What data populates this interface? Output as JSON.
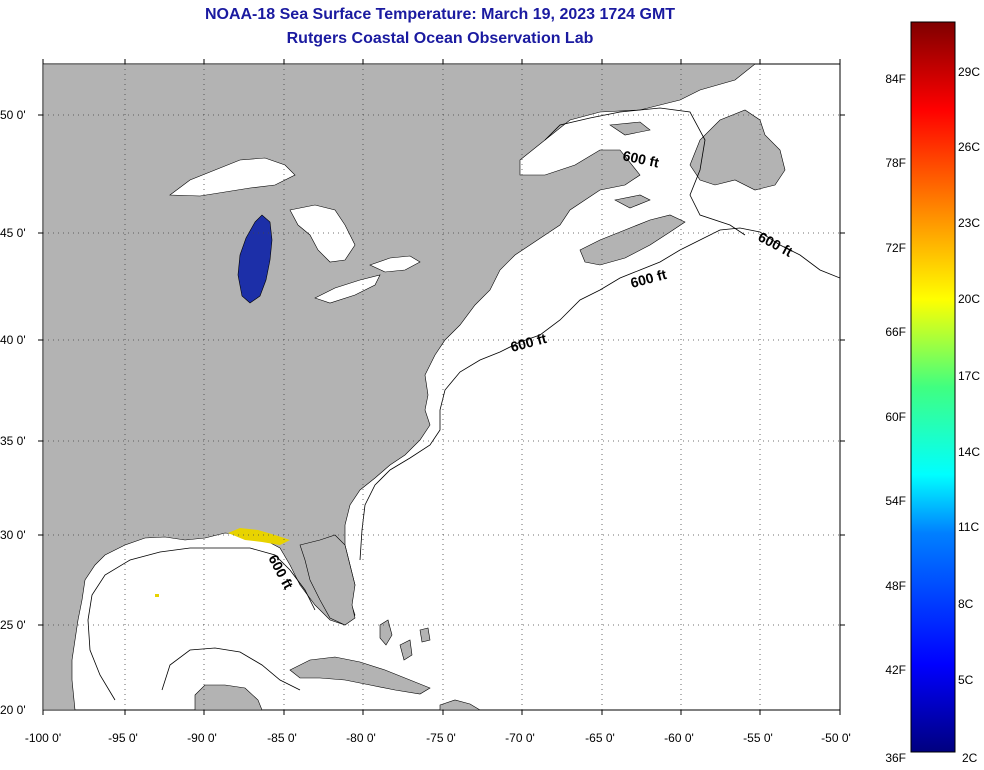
{
  "title": "NOAA-18 Sea Surface Temperature:  March 19, 2023 1724 GMT",
  "subtitle": "Rutgers Coastal Ocean Observation Lab",
  "map": {
    "lat_labels": [
      "50 0'",
      "45 0'",
      "40 0'",
      "35 0'",
      "30 0'",
      "25 0'",
      "20 0'"
    ],
    "lon_labels": [
      "-100 0'",
      "-95 0'",
      "-90 0'",
      "-85 0'",
      "-80 0'",
      "-75 0'",
      "-70 0'",
      "-65 0'",
      "-60 0'",
      "-55 0'",
      "-50 0'"
    ],
    "isobath_labels": [
      "600 ft",
      "600 ft",
      "600 ft",
      "600 ft",
      "600 ft"
    ],
    "colors": {
      "land": "#b3b3b3",
      "ocean": "#ffffff",
      "lake_michigan": "#1c2fa8",
      "gulf_sst": "#e8d300"
    }
  },
  "colorbar": {
    "f_labels": [
      "84F",
      "78F",
      "72F",
      "66F",
      "60F",
      "54F",
      "48F",
      "42F",
      "36F"
    ],
    "c_labels": [
      "29C",
      "26C",
      "23C",
      "20C",
      "17C",
      "14C",
      "11C",
      "8C",
      "5C",
      "2C"
    ]
  }
}
